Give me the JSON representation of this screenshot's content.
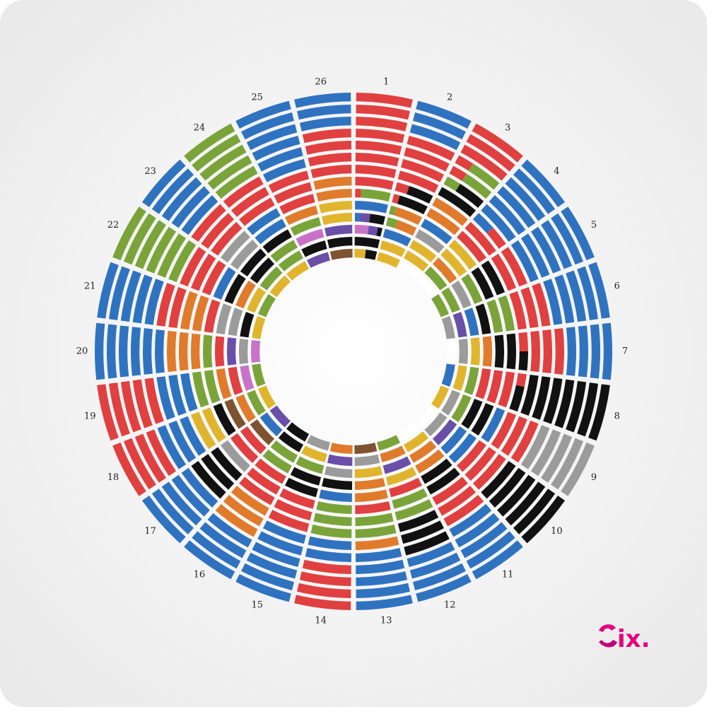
{
  "logo": {
    "text": "ix.",
    "colors": [
      "#e6007e",
      "#9c27b0"
    ]
  },
  "chart_data": {
    "type": "radial-stacked-rings",
    "title": "",
    "categories": [
      "1",
      "2",
      "3",
      "4",
      "5",
      "6",
      "7",
      "8",
      "9",
      "10",
      "11",
      "12",
      "13",
      "14",
      "15",
      "16",
      "17",
      "18",
      "19",
      "20",
      "21",
      "22",
      "23",
      "24",
      "25",
      "26"
    ],
    "rings_per_sector": 14,
    "ring_order": "outer-to-inner",
    "palette": {
      "R": "#e04040",
      "B": "#2f73c0",
      "G": "#7aa43a",
      "O": "#e07b2b",
      "Y": "#e0b52d",
      "K": "#111111",
      "S": "#9b9b9b",
      "P": "#6a4fa8",
      "M": "#c873c8",
      "N": "#7d5330",
      "W": "#ffffff"
    },
    "sectors": [
      {
        "label": "1",
        "rings": [
          "RRRRRR",
          "RRRRRR",
          "RRRRRR",
          "RRRRRR",
          "RRRRRR",
          "RRRRRR",
          "RRRRRR",
          "RRRRRR",
          "RGGGGG",
          "BBBBBB",
          "BPPKKK",
          "MMMPPK",
          "KKKKKK",
          "YYYKKK"
        ]
      },
      {
        "label": "2",
        "rings": [
          "BBBBBB",
          "BBBBBB",
          "BBBBBB",
          "RRRRRR",
          "RRRRRR",
          "RRRRRR",
          "RRRRRR",
          "RRKKKK",
          "RKKKKK",
          "GOOOOO",
          "GGOOOO",
          "BBBBBB",
          "YYYYYY",
          "YYYYYY"
        ]
      },
      {
        "label": "3",
        "rings": [
          "RRRRRR",
          "RRRRRR",
          "RRRRRR",
          "RRGGGG",
          "RRGGGG",
          "GGKKKK",
          "KKKKKK",
          "OOOOOO",
          "OOOOOO",
          "BBBBBB",
          "SSSSSS",
          "YYYYYY",
          "YYYYYY",
          "WWWWWW"
        ]
      },
      {
        "label": "4",
        "rings": [
          "BBBBBB",
          "BBBBBB",
          "BBBBBB",
          "BBBBBB",
          "BBBBBB",
          "BBBBBB",
          "BBBRRR",
          "RRRRRR",
          "RRRRRR",
          "YYYYYY",
          "YYYYYY",
          "OOOOOO",
          "GGGGGG",
          "WWWWWW"
        ]
      },
      {
        "label": "5",
        "rings": [
          "BBBBBB",
          "BBBBBB",
          "BBBBBB",
          "BBBBBB",
          "BBBBBB",
          "BBBBBB",
          "RRRRRR",
          "RRRRRR",
          "KKKKKK",
          "KKKKKK",
          "GGGGGG",
          "SSSSSS",
          "GGGGGG",
          "GGGGGG"
        ]
      },
      {
        "label": "6",
        "rings": [
          "BBBBBB",
          "BBBBBB",
          "BBBBBB",
          "BBBBBB",
          "BBBBBB",
          "RRRRRR",
          "RRRRRR",
          "RRRRRR",
          "GGGGGG",
          "GGGGGG",
          "KKKKKK",
          "BBBBBB",
          "PPPPPP",
          "SSSSSS"
        ]
      },
      {
        "label": "7",
        "rings": [
          "BBBBBB",
          "BBBBBB",
          "BBBBBB",
          "BBBBBB",
          "RRRRRR",
          "RRRRRR",
          "RRRRRR",
          "RRRKKK",
          "KKKKKK",
          "KKKKKK",
          "OOOOOO",
          "YYYYYY",
          "SSSSSS",
          "WWWWWW"
        ]
      },
      {
        "label": "8",
        "rings": [
          "KKKKKK",
          "KKKKKK",
          "KKKKKK",
          "KKKKKK",
          "KKKKKK",
          "KKKKKK",
          "KKKKKK",
          "RRKKKK",
          "RRRRRR",
          "RRRRRR",
          "RRRRRR",
          "GGGGGG",
          "YYYYYY",
          "BBBBBB"
        ]
      },
      {
        "label": "9",
        "rings": [
          "SSSSSS",
          "SSSSSS",
          "SSSSSS",
          "SSSSSS",
          "SSSSSS",
          "RRRRRR",
          "RRRRRR",
          "RRRRRR",
          "BBBBBB",
          "KKKKKK",
          "KKKKKK",
          "GGGGGG",
          "SSSSSS",
          "YYYYYY"
        ]
      },
      {
        "label": "10",
        "rings": [
          "KKKKKK",
          "KKKKKK",
          "KKKKKK",
          "KKKKKK",
          "KKKKKK",
          "KKKKKK",
          "RRRRRR",
          "RRRRRR",
          "RRRRRR",
          "BBBBBB",
          "BBBBBB",
          "PPPPPP",
          "SSSSSS",
          "WWWWWW"
        ]
      },
      {
        "label": "11",
        "rings": [
          "BBBBBB",
          "BBBBBB",
          "BBBBBB",
          "BBBBBB",
          "BBBBBB",
          "RRRRRR",
          "RRRRRR",
          "RRRRRR",
          "KKKKKK",
          "KKKKKK",
          "OOOOOO",
          "OOOOOO",
          "YYYYYY",
          "WWWWWW"
        ]
      },
      {
        "label": "12",
        "rings": [
          "BBBBBB",
          "BBBBBB",
          "BBBBBB",
          "BBBBBB",
          "KKKKKK",
          "KKKKKK",
          "KKKKKK",
          "GGGGGG",
          "GGGGGG",
          "RRRRRR",
          "YYYYYY",
          "PPPPPP",
          "OOOOOO",
          "GGGGGG"
        ]
      },
      {
        "label": "13",
        "rings": [
          "BBBBBB",
          "BBBBBB",
          "BBBBBB",
          "BBBBBB",
          "BBBBBB",
          "OOOOOO",
          "GGGGGG",
          "GGGGGG",
          "RRRRRR",
          "OOOOOO",
          "OOOOOO",
          "YYYYYY",
          "SSSSSS",
          "NNNNNN"
        ]
      },
      {
        "label": "14",
        "rings": [
          "RRRRRR",
          "RRRRRR",
          "RRRRRR",
          "RRRRRR",
          "BBBBBB",
          "BBBBBB",
          "GGGGGG",
          "GGGGGG",
          "GGGGGG",
          "BBBBBB",
          "KKKKKK",
          "SSSSSS",
          "PPPPPP",
          "OOOOOO"
        ]
      },
      {
        "label": "15",
        "rings": [
          "BBBBBB",
          "BBBBBB",
          "BBBBBB",
          "BBBBBB",
          "BBBBBB",
          "BBBBBB",
          "RRRRRR",
          "RRRRRR",
          "RRRRRR",
          "KKKKKK",
          "KKKKKK",
          "GGGGGG",
          "YYYYYY",
          "SSSSSS"
        ]
      },
      {
        "label": "16",
        "rings": [
          "BBBBBB",
          "BBBBBB",
          "BBBBBB",
          "BBBBBB",
          "OOOOOO",
          "OOOOOO",
          "OOOOOO",
          "RRRRRR",
          "RRRRRR",
          "RRRRRR",
          "GGGGGG",
          "GGGGGG",
          "KKKKKK",
          "KKKKKK"
        ]
      },
      {
        "label": "17",
        "rings": [
          "BBBBBB",
          "BBBBBB",
          "BBBBBB",
          "BBBBBB",
          "BBBBBB",
          "KKKKKK",
          "KKKKKK",
          "KKKKKK",
          "SSSSSS",
          "RRRRRR",
          "RRRRRR",
          "NNNNNN",
          "BBBBBB",
          "PPPPPP"
        ]
      },
      {
        "label": "18",
        "rings": [
          "RRRRRR",
          "RRRRRR",
          "RRRRRR",
          "RRRRRR",
          "BBBBBB",
          "BBBBBB",
          "BBBBBB",
          "YYYYYY",
          "YYYYYY",
          "KKKKKK",
          "NNNNNN",
          "OOOOOO",
          "GGGGGG",
          "YYYYYY"
        ]
      },
      {
        "label": "19",
        "rings": [
          "RRRRRR",
          "RRRRRR",
          "RRRRRR",
          "RRRRRR",
          "RRRRRR",
          "BBBBBB",
          "BBBBBB",
          "BBBBBB",
          "GGGGGG",
          "GGGGGG",
          "OOOOOO",
          "RRRRRR",
          "MMMMMM",
          "GGGGGG"
        ]
      },
      {
        "label": "20",
        "rings": [
          "BBBBBB",
          "BBBBBB",
          "BBBBBB",
          "BBBBBB",
          "BBBBBB",
          "BBBBBB",
          "OOOOOO",
          "OOOOOO",
          "OOOOOO",
          "GGGGGG",
          "RRRRRR",
          "PPPPPP",
          "SSSSSS",
          "MMMMMM"
        ]
      },
      {
        "label": "21",
        "rings": [
          "BBBBBB",
          "BBBBBB",
          "BBBBBB",
          "BBBBBB",
          "BBBBBB",
          "RRRRRR",
          "RRRRRR",
          "OOOOOO",
          "OOOOOO",
          "RRRRRR",
          "SSSSSS",
          "SSSSSS",
          "KKKKKK",
          "YYYYYY"
        ]
      },
      {
        "label": "22",
        "rings": [
          "GGGGGG",
          "GGGGGG",
          "GGGGGG",
          "GGGGGG",
          "GGGGGG",
          "GGGGGG",
          "RRRRRR",
          "RRRRRR",
          "RRRRRR",
          "BBBBBB",
          "KKKKKK",
          "OOOOOO",
          "YYYYYY",
          "GGGGGG"
        ]
      },
      {
        "label": "23",
        "rings": [
          "BBBBBB",
          "BBBBBB",
          "BBBBBB",
          "BBBBBB",
          "BBBBBB",
          "RRRRRR",
          "RRRRRR",
          "RRRRRR",
          "SSSSSS",
          "SSSSSS",
          "KKKKKK",
          "KKKKKK",
          "GGGGGG",
          "YYYYYY"
        ]
      },
      {
        "label": "24",
        "rings": [
          "GGGGGG",
          "GGGGGG",
          "GGGGGG",
          "GGGGGG",
          "GGGGGG",
          "RRRRRR",
          "RRRRRR",
          "RRRRRR",
          "BBBBBB",
          "BBBBBB",
          "KKKKKK",
          "GGGGGG",
          "GGGGGG",
          "YYYYYY"
        ]
      },
      {
        "label": "25",
        "rings": [
          "BBBBBB",
          "BBBBBB",
          "BBBBBB",
          "BBBBBB",
          "BBBBBB",
          "BBBBBB",
          "RRRRRR",
          "RRRRRR",
          "RRRRRR",
          "OOOOOO",
          "GGGGGG",
          "MMMMMM",
          "KKKKKK",
          "PPPPPP"
        ]
      },
      {
        "label": "26",
        "rings": [
          "BBBBBB",
          "BBBBBB",
          "BBBBBB",
          "RRRRRR",
          "RRRRRR",
          "RRRRRR",
          "RRRRRR",
          "OOOOOO",
          "OOOOOO",
          "YYYYYY",
          "YYYYYY",
          "PPPPPP",
          "KKKKKK",
          "NNNNNN"
        ]
      }
    ]
  }
}
